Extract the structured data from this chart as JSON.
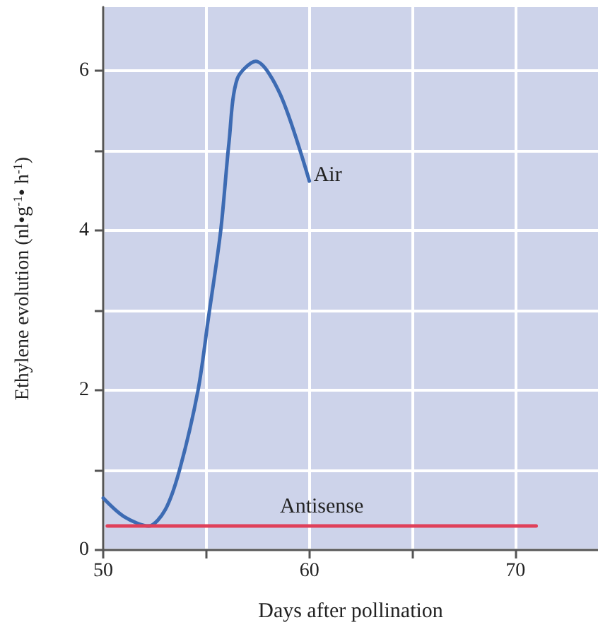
{
  "chart_data": {
    "type": "line",
    "xlabel": "Days after pollination",
    "ylabel": "Ethylene evolution (nl•g$^{-1}$• h$^{-1}$)",
    "series": [
      {
        "name": "Air",
        "color": "#3d6bb3",
        "x": [
          50,
          51,
          52.2,
          53,
          53.7,
          54.6,
          55.1,
          55.7,
          56.1,
          56.5,
          57.4,
          58.6,
          60
        ],
        "values": [
          0.65,
          0.42,
          0.3,
          0.5,
          1.0,
          2.0,
          2.9,
          4.0,
          5.1,
          5.9,
          6.12,
          5.7,
          4.62
        ]
      },
      {
        "name": "Antisense",
        "color": "#e0405a",
        "x": [
          50.2,
          71
        ],
        "values": [
          0.3,
          0.3
        ]
      }
    ],
    "xlim": [
      50,
      74
    ],
    "xticks": [
      50,
      {
        "value": 55,
        "label": null
      },
      60,
      {
        "value": 65,
        "label": null
      },
      70
    ],
    "ylim": [
      0,
      6.8
    ],
    "yticks": [
      0,
      {
        "value": 1,
        "label": null
      },
      2,
      {
        "value": 3,
        "label": null
      },
      4,
      {
        "value": 5,
        "label": null
      },
      6
    ],
    "grid": true,
    "legend": false,
    "marker": "none",
    "line_style": "solid"
  }
}
